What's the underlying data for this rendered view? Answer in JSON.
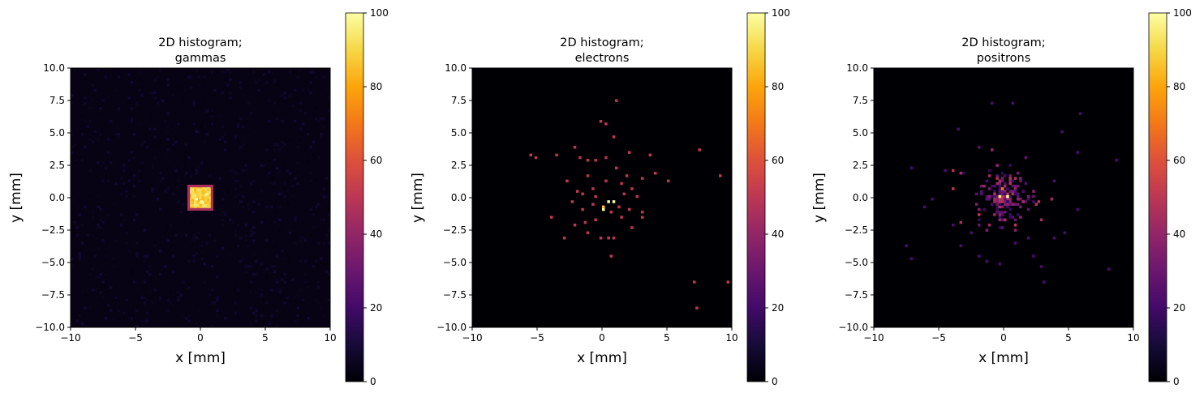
{
  "chart_data": [
    {
      "type": "heatmap",
      "title": "2D histogram;\ngammas",
      "xlabel": "x [mm]",
      "ylabel": "y [mm]",
      "xlim": [
        -10,
        10
      ],
      "ylim": [
        -10,
        10
      ],
      "xticks": [
        -10,
        -5,
        0,
        5,
        10
      ],
      "yticks": [
        -10.0,
        -7.5,
        -5.0,
        -2.5,
        0.0,
        2.5,
        5.0,
        7.5,
        10.0
      ],
      "ytick_labels": [
        "−10.0",
        "−7.5",
        "−5.0",
        "−2.5",
        "0.0",
        "2.5",
        "5.0",
        "7.5",
        "10.0"
      ],
      "xtick_labels": [
        "−10",
        "−5",
        "0",
        "5",
        "10"
      ],
      "colormap": "inferno",
      "colorbar": {
        "range": [
          0,
          100
        ],
        "ticks": [
          0,
          20,
          40,
          60,
          80,
          100
        ],
        "tick_labels": [
          "0",
          "20",
          "40",
          "60",
          "80",
          "100"
        ]
      },
      "grid": false,
      "background_count": 3,
      "features": [
        {
          "kind": "block",
          "x": [
            -0.9,
            0.9
          ],
          "y": [
            -0.9,
            0.9
          ],
          "value": 88
        },
        {
          "kind": "block_edge",
          "x": [
            -0.9,
            0.9
          ],
          "y": [
            -0.9,
            0.9
          ],
          "value": 45
        }
      ],
      "hot_pixels": [
        {
          "x": 0.0,
          "y": -0.3,
          "value": 100
        },
        {
          "x": -0.4,
          "y": -0.1,
          "value": 100
        },
        {
          "x": 0.5,
          "y": 0.3,
          "value": 96
        }
      ],
      "sparse_points": [
        {
          "x": -5.3,
          "y": 9.0,
          "value": 8
        },
        {
          "x": 8.4,
          "y": 8.2,
          "value": 8
        },
        {
          "x": -0.3,
          "y": 5.1,
          "value": 10
        },
        {
          "x": 3.4,
          "y": 2.5,
          "value": 7
        },
        {
          "x": -6.2,
          "y": -2.0,
          "value": 7
        },
        {
          "x": -9.0,
          "y": -8.5,
          "value": 8
        },
        {
          "x": 6.3,
          "y": -6.3,
          "value": 7
        },
        {
          "x": -7.0,
          "y": 6.0,
          "value": 7
        },
        {
          "x": 0.2,
          "y": -5.1,
          "value": 9
        },
        {
          "x": 7.5,
          "y": -9.1,
          "value": 7
        }
      ]
    },
    {
      "type": "heatmap",
      "title": "2D histogram;\nelectrons",
      "xlabel": "x [mm]",
      "ylabel": "y [mm]",
      "xlim": [
        -10,
        10
      ],
      "ylim": [
        -10,
        10
      ],
      "xticks": [
        -10,
        -5,
        0,
        5,
        10
      ],
      "yticks": [
        -10.0,
        -7.5,
        -5.0,
        -2.5,
        0.0,
        2.5,
        5.0,
        7.5,
        10.0
      ],
      "ytick_labels": [
        "−10.0",
        "−7.5",
        "−5.0",
        "−2.5",
        "0.0",
        "2.5",
        "5.0",
        "7.5",
        "10.0"
      ],
      "xtick_labels": [
        "−10",
        "−5",
        "0",
        "5",
        "10"
      ],
      "colormap": "inferno",
      "colorbar": {
        "range": [
          0,
          100
        ],
        "ticks": [
          0,
          20,
          40,
          60,
          80,
          100
        ],
        "tick_labels": [
          "0",
          "20",
          "40",
          "60",
          "80",
          "100"
        ]
      },
      "grid": false,
      "background_count": 0,
      "features": [],
      "hot_pixels": [
        {
          "x": 0.0,
          "y": -0.9,
          "value": 100
        },
        {
          "x": 0.5,
          "y": -0.2,
          "value": 100
        },
        {
          "x": 0.9,
          "y": -0.3,
          "value": 100
        },
        {
          "x": 0.0,
          "y": -0.6,
          "value": 85
        }
      ],
      "sparse_points": [
        {
          "x": 1.1,
          "y": 7.5,
          "value": 50
        },
        {
          "x": -0.2,
          "y": 5.9,
          "value": 50
        },
        {
          "x": 0.3,
          "y": 5.7,
          "value": 50
        },
        {
          "x": 0.8,
          "y": 4.7,
          "value": 50
        },
        {
          "x": -5.6,
          "y": 3.3,
          "value": 50
        },
        {
          "x": -5.2,
          "y": 3.1,
          "value": 50
        },
        {
          "x": -3.4,
          "y": 3.3,
          "value": 50
        },
        {
          "x": -2.2,
          "y": 3.9,
          "value": 50
        },
        {
          "x": -1.7,
          "y": 3.2,
          "value": 50
        },
        {
          "x": -1.2,
          "y": 3.0,
          "value": 50
        },
        {
          "x": -0.6,
          "y": 3.0,
          "value": 50
        },
        {
          "x": 0.3,
          "y": 3.1,
          "value": 50
        },
        {
          "x": 2.1,
          "y": 3.6,
          "value": 50
        },
        {
          "x": 3.7,
          "y": 3.3,
          "value": 50
        },
        {
          "x": 7.5,
          "y": 3.7,
          "value": 50
        },
        {
          "x": 9.1,
          "y": 1.8,
          "value": 50
        },
        {
          "x": 5.1,
          "y": 1.4,
          "value": 50
        },
        {
          "x": 4.1,
          "y": 2.0,
          "value": 50
        },
        {
          "x": 3.2,
          "y": 1.6,
          "value": 50
        },
        {
          "x": 1.9,
          "y": 1.7,
          "value": 50
        },
        {
          "x": 1.0,
          "y": 2.3,
          "value": 50
        },
        {
          "x": -1.2,
          "y": 1.8,
          "value": 50
        },
        {
          "x": -2.7,
          "y": 1.4,
          "value": 50
        },
        {
          "x": -2.0,
          "y": 0.6,
          "value": 50
        },
        {
          "x": -1.5,
          "y": 0.3,
          "value": 50
        },
        {
          "x": -0.8,
          "y": 0.8,
          "value": 50
        },
        {
          "x": 0.3,
          "y": 1.3,
          "value": 50
        },
        {
          "x": 1.4,
          "y": 1.1,
          "value": 50
        },
        {
          "x": 2.2,
          "y": 0.8,
          "value": 50
        },
        {
          "x": 2.7,
          "y": 0.2,
          "value": 50
        },
        {
          "x": 1.7,
          "y": 0.4,
          "value": 50
        },
        {
          "x": -0.5,
          "y": 0.2,
          "value": 50
        },
        {
          "x": -2.4,
          "y": -0.3,
          "value": 50
        },
        {
          "x": -1.6,
          "y": -0.9,
          "value": 50
        },
        {
          "x": -0.8,
          "y": -0.5,
          "value": 50
        },
        {
          "x": 1.3,
          "y": -0.6,
          "value": 50
        },
        {
          "x": 2.1,
          "y": -0.9,
          "value": 50
        },
        {
          "x": 3.2,
          "y": -1.1,
          "value": 50
        },
        {
          "x": 3.0,
          "y": -1.4,
          "value": 50
        },
        {
          "x": 1.6,
          "y": -1.6,
          "value": 50
        },
        {
          "x": 0.6,
          "y": -1.2,
          "value": 50
        },
        {
          "x": -0.6,
          "y": -1.7,
          "value": 50
        },
        {
          "x": -1.4,
          "y": -1.8,
          "value": 50
        },
        {
          "x": -2.2,
          "y": -2.0,
          "value": 50
        },
        {
          "x": -4.0,
          "y": -1.6,
          "value": 50
        },
        {
          "x": -1.1,
          "y": -2.6,
          "value": 50
        },
        {
          "x": -2.9,
          "y": -3.0,
          "value": 50
        },
        {
          "x": -0.2,
          "y": -3.1,
          "value": 50
        },
        {
          "x": 0.4,
          "y": -3.0,
          "value": 50
        },
        {
          "x": 0.8,
          "y": -3.0,
          "value": 50
        },
        {
          "x": 2.3,
          "y": -2.3,
          "value": 50
        },
        {
          "x": 0.7,
          "y": -4.4,
          "value": 50
        },
        {
          "x": 7.1,
          "y": -6.4,
          "value": 50
        },
        {
          "x": 9.7,
          "y": -6.4,
          "value": 50
        },
        {
          "x": 7.4,
          "y": -8.4,
          "value": 50
        }
      ]
    },
    {
      "type": "heatmap",
      "title": "2D histogram;\npositrons",
      "xlabel": "x [mm]",
      "ylabel": "y [mm]",
      "xlim": [
        -10,
        10
      ],
      "ylim": [
        -10,
        10
      ],
      "xticks": [
        -10,
        -5,
        0,
        5,
        10
      ],
      "yticks": [
        -10.0,
        -7.5,
        -5.0,
        -2.5,
        0.0,
        2.5,
        5.0,
        7.5,
        10.0
      ],
      "ytick_labels": [
        "−10.0",
        "−7.5",
        "−5.0",
        "−2.5",
        "0.0",
        "2.5",
        "5.0",
        "7.5",
        "10.0"
      ],
      "xtick_labels": [
        "−10",
        "−5",
        "0",
        "5",
        "10"
      ],
      "colormap": "inferno",
      "colorbar": {
        "range": [
          0,
          100
        ],
        "ticks": [
          0,
          20,
          40,
          60,
          80,
          100
        ],
        "tick_labels": [
          "0",
          "20",
          "40",
          "60",
          "80",
          "100"
        ]
      },
      "grid": false,
      "background_count": 0,
      "features": [
        {
          "kind": "cluster",
          "center": [
            0,
            0
          ],
          "radius": 3.2,
          "count": 220,
          "value_range": [
            15,
            50
          ]
        }
      ],
      "hot_pixels": [
        {
          "x": 0.3,
          "y": 0.2,
          "value": 100
        },
        {
          "x": -0.4,
          "y": 0.2,
          "value": 95
        },
        {
          "x": -0.1,
          "y": 0.8,
          "value": 70
        }
      ],
      "sparse_points": [
        {
          "x": -0.9,
          "y": 7.3,
          "value": 22
        },
        {
          "x": 0.6,
          "y": 7.3,
          "value": 22
        },
        {
          "x": 5.9,
          "y": 6.5,
          "value": 22
        },
        {
          "x": -3.4,
          "y": 5.3,
          "value": 22
        },
        {
          "x": 4.4,
          "y": 5.1,
          "value": 22
        },
        {
          "x": 5.6,
          "y": 3.4,
          "value": 22
        },
        {
          "x": 8.7,
          "y": 3.0,
          "value": 22
        },
        {
          "x": -7.1,
          "y": 2.3,
          "value": 22
        },
        {
          "x": -4.5,
          "y": 2.1,
          "value": 22
        },
        {
          "x": 3.9,
          "y": 1.4,
          "value": 22
        },
        {
          "x": 5.7,
          "y": -0.8,
          "value": 22
        },
        {
          "x": -5.6,
          "y": 0.0,
          "value": 22
        },
        {
          "x": -6.1,
          "y": -0.6,
          "value": 22
        },
        {
          "x": -4.0,
          "y": -2.0,
          "value": 22
        },
        {
          "x": -7.1,
          "y": -4.6,
          "value": 22
        },
        {
          "x": -7.4,
          "y": -3.6,
          "value": 22
        },
        {
          "x": 4.7,
          "y": -2.6,
          "value": 22
        },
        {
          "x": 3.9,
          "y": -3.1,
          "value": 22
        },
        {
          "x": 8.2,
          "y": -5.4,
          "value": 22
        },
        {
          "x": 3.1,
          "y": -6.4,
          "value": 22
        },
        {
          "x": -2.0,
          "y": -4.4,
          "value": 22
        },
        {
          "x": -1.4,
          "y": -4.8,
          "value": 22
        },
        {
          "x": -0.4,
          "y": -5.0,
          "value": 22
        },
        {
          "x": 2.2,
          "y": -4.4,
          "value": 22
        },
        {
          "x": 2.8,
          "y": -5.2,
          "value": 22
        },
        {
          "x": -3.3,
          "y": -3.6,
          "value": 22
        },
        {
          "x": -2.6,
          "y": -2.7,
          "value": 22
        },
        {
          "x": 1.8,
          "y": -3.1,
          "value": 22
        },
        {
          "x": 0.9,
          "y": -3.5,
          "value": 22
        }
      ]
    }
  ]
}
